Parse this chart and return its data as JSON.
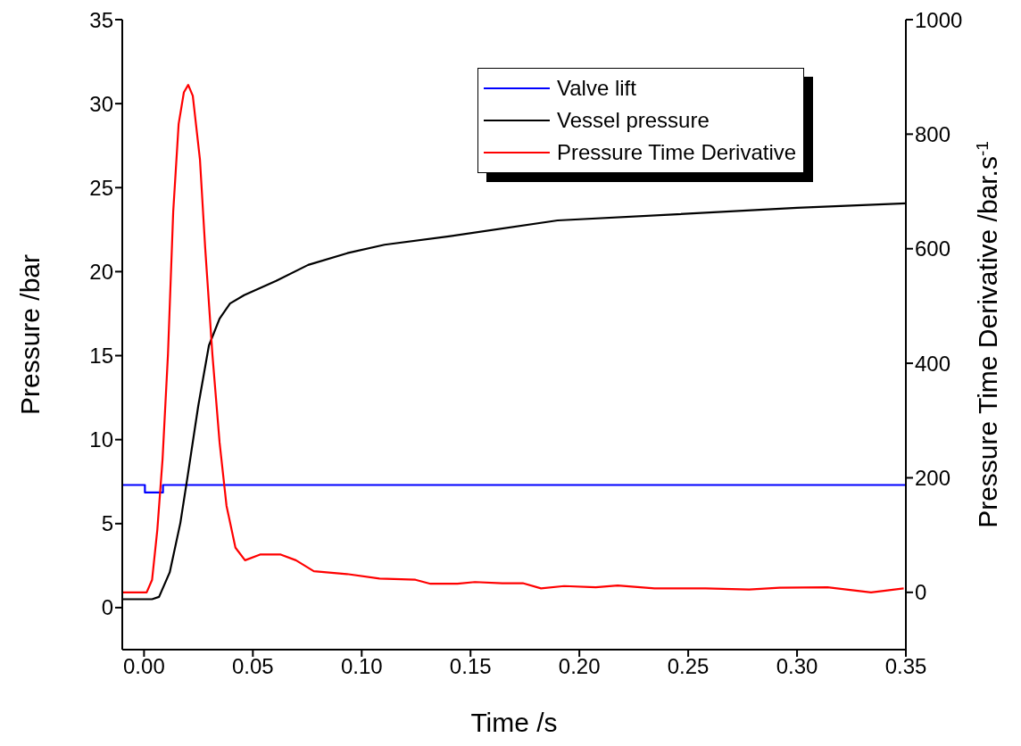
{
  "chart_data": {
    "type": "line",
    "xlabel": "Time /s",
    "ylabel": "Pressure /bar",
    "y2label": "Pressure Time Derivative /bar.s$^{-1}$",
    "xlim": [
      -0.01,
      0.35
    ],
    "xticks": [
      {
        "value": 0,
        "label": "0.00"
      },
      0.05,
      {
        "value": 0.1,
        "label": "0.10"
      },
      0.15,
      {
        "value": 0.2,
        "label": "0.20"
      },
      0.25,
      {
        "value": 0.3,
        "label": "0.30"
      },
      0.35
    ],
    "ylim": [
      -2.5,
      35
    ],
    "yticks": [
      0,
      5,
      10,
      15,
      20,
      25,
      30,
      35
    ],
    "y2lim": [
      -100,
      1000
    ],
    "y2ticks": [
      0,
      200,
      400,
      600,
      800,
      1000
    ],
    "legend": "top right",
    "marker": "none",
    "line_style": "solid",
    "series": [
      {
        "name": "Valve lift",
        "color": "#0000ff",
        "x": [
          -0.01,
          0.0004,
          0.0004,
          0.0087,
          0.0087,
          0.35
        ],
        "values": [
          7.3,
          7.3,
          6.85,
          6.85,
          7.3,
          7.3
        ]
      },
      {
        "name": "Vessel pressure",
        "color": "#000000",
        "x": [
          -0.01,
          0.0037,
          0.0069,
          0.0118,
          0.0167,
          0.02,
          0.0249,
          0.0298,
          0.0347,
          0.0395,
          0.046,
          0.0607,
          0.0754,
          0.0934,
          0.1105,
          0.14,
          0.19,
          0.243,
          0.3,
          0.35
        ],
        "values": [
          0.5,
          0.5,
          0.64,
          2.1,
          5.05,
          7.8,
          12.0,
          15.6,
          17.2,
          18.1,
          18.6,
          19.45,
          20.4,
          21.1,
          21.6,
          22.1,
          23.05,
          23.4,
          23.8,
          24.07
        ]
      },
      {
        "name": "Pressure Time Derivative",
        "color": "#ff0000",
        "axis": "y2",
        "x": [
          -0.01,
          0.0012,
          0.0037,
          0.0061,
          0.0085,
          0.011,
          0.0134,
          0.0159,
          0.0183,
          0.0203,
          0.0224,
          0.0257,
          0.0281,
          0.0314,
          0.0347,
          0.0379,
          0.042,
          0.0464,
          0.0533,
          0.0628,
          0.0698,
          0.078,
          0.0932,
          0.1082,
          0.1247,
          0.1316,
          0.144,
          0.152,
          0.1646,
          0.174,
          0.1824,
          0.193,
          0.2075,
          0.2176,
          0.2345,
          0.258,
          0.278,
          0.292,
          0.314,
          0.334,
          0.349
        ],
        "values": [
          0,
          0,
          22,
          109,
          232,
          416,
          664,
          818,
          873,
          886,
          867,
          755,
          601,
          416,
          262,
          151,
          78,
          56,
          66,
          66,
          56,
          37,
          32,
          24,
          22,
          15,
          15,
          18,
          16,
          16,
          7,
          11,
          9,
          12,
          7,
          7,
          5,
          8,
          9,
          0,
          7
        ]
      }
    ]
  }
}
